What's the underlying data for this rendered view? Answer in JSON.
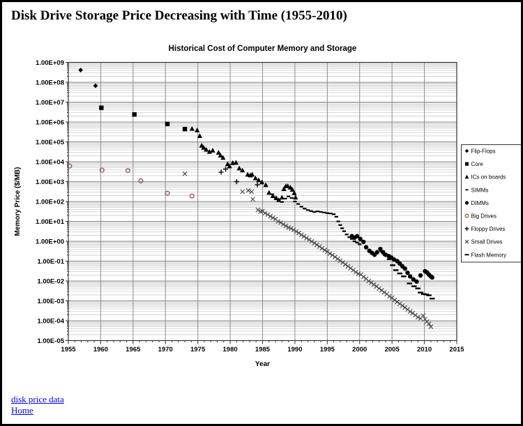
{
  "page": {
    "title": "Disk Drive Storage Price Decreasing with Time (1955-2010)"
  },
  "links": {
    "disk_price_data": "disk price data",
    "home": "Home"
  },
  "chart_data": {
    "type": "scatter",
    "title": "Historical Cost of Computer Memory and Storage",
    "xlabel": "Year",
    "ylabel": "Memory Price ($/MB)",
    "x_range": [
      1955,
      2015
    ],
    "x_ticks": [
      1955,
      1960,
      1965,
      1970,
      1975,
      1980,
      1985,
      1990,
      1995,
      2000,
      2005,
      2010,
      2015
    ],
    "y_scale": "log",
    "ylim": [
      1e-05,
      1000000000
    ],
    "y_ticks": [
      "1.00E+09",
      "1.00E+08",
      "1.00E+07",
      "1.00E+06",
      "1.00E+05",
      "1.00E+04",
      "1.00E+03",
      "1.00E+02",
      "1.00E+01",
      "1.00E+00",
      "1.00E-01",
      "1.00E-02",
      "1.00E-03",
      "1.00E-04",
      "1.00E-05"
    ],
    "grid": "major-and-log-minor",
    "legend_position": "right",
    "series": [
      {
        "name": "Flip-Flops",
        "marker": "diamond",
        "color": "#000000",
        "points": [
          [
            1956.9,
            410000000.0
          ],
          [
            1959.2,
            67000000.0
          ]
        ]
      },
      {
        "name": "Core",
        "marker": "square",
        "color": "#000000",
        "points": [
          [
            1960.1,
            5200000.0
          ],
          [
            1965.2,
            2400000.0
          ],
          [
            1970.3,
            800000.0
          ],
          [
            1973.0,
            440000.0
          ]
        ]
      },
      {
        "name": "ICs on boards",
        "marker": "triangle",
        "color": "#000000",
        "points": [
          [
            1974.1,
            460000
          ],
          [
            1974.9,
            390000
          ],
          [
            1975.3,
            200000
          ],
          [
            1975.6,
            66000
          ],
          [
            1975.9,
            52000
          ],
          [
            1976.3,
            41000
          ],
          [
            1976.8,
            32000
          ],
          [
            1977.3,
            37000
          ],
          [
            1978.2,
            29000
          ],
          [
            1978.5,
            21000
          ],
          [
            1978.9,
            16000
          ],
          [
            1979.6,
            7700
          ],
          [
            1979.9,
            6000
          ],
          [
            1980.4,
            8800
          ],
          [
            1980.9,
            9100
          ],
          [
            1981.4,
            4700
          ],
          [
            1981.9,
            3700
          ],
          [
            1982.7,
            2300
          ],
          [
            1983.1,
            2100
          ],
          [
            1983.4,
            2300
          ],
          [
            1983.9,
            1500
          ],
          [
            1984.4,
            1200
          ],
          [
            1984.9,
            940
          ],
          [
            1985.5,
            680
          ],
          [
            1986.0,
            280
          ],
          [
            1986.6,
            190
          ],
          [
            1987.1,
            150
          ],
          [
            1987.5,
            120
          ],
          [
            1988.0,
            160
          ],
          [
            1988.3,
            430
          ],
          [
            1988.6,
            600
          ],
          [
            1988.9,
            600
          ],
          [
            1989.3,
            510
          ],
          [
            1989.6,
            400
          ],
          [
            1989.9,
            270
          ],
          [
            1990.1,
            160
          ]
        ]
      },
      {
        "name": "SIMMs",
        "marker": "dash-small",
        "color": "#000000",
        "points": [
          [
            1986.5,
            230
          ],
          [
            1987.0,
            160
          ],
          [
            1987.5,
            120
          ],
          [
            1988.0,
            95
          ],
          [
            1988.5,
            140
          ],
          [
            1989.0,
            180
          ],
          [
            1989.5,
            150
          ],
          [
            1990.0,
            100
          ],
          [
            1990.5,
            75
          ],
          [
            1991.0,
            55
          ],
          [
            1991.5,
            44
          ],
          [
            1992.0,
            37
          ],
          [
            1992.5,
            33
          ],
          [
            1993.0,
            30
          ],
          [
            1993.5,
            32
          ],
          [
            1994.0,
            30
          ],
          [
            1994.5,
            28
          ],
          [
            1995.0,
            26
          ],
          [
            1995.5,
            25
          ],
          [
            1996.0,
            23
          ],
          [
            1996.4,
            17
          ],
          [
            1996.7,
            10
          ],
          [
            1997.0,
            6.5
          ],
          [
            1997.3,
            4.5
          ],
          [
            1997.6,
            3.2
          ],
          [
            1998.0,
            2.2
          ],
          [
            1998.4,
            1.6
          ],
          [
            1998.8,
            1.3
          ],
          [
            1999.2,
            1.0
          ],
          [
            1999.6,
            0.85
          ],
          [
            2000.0,
            0.7
          ]
        ]
      },
      {
        "name": "DIMMs",
        "marker": "circle-filled",
        "color": "#000000",
        "points": [
          [
            1998.8,
            1.8
          ],
          [
            1999.2,
            1.5
          ],
          [
            1999.6,
            1.8
          ],
          [
            2000.1,
            1.3
          ],
          [
            2000.6,
            0.93
          ],
          [
            2001.0,
            0.5
          ],
          [
            2001.5,
            0.33
          ],
          [
            2001.9,
            0.26
          ],
          [
            2002.3,
            0.21
          ],
          [
            2002.7,
            0.28
          ],
          [
            2003.2,
            0.41
          ],
          [
            2003.6,
            0.28
          ],
          [
            2004.0,
            0.21
          ],
          [
            2004.5,
            0.18
          ],
          [
            2004.9,
            0.15
          ],
          [
            2005.3,
            0.12
          ],
          [
            2005.8,
            0.1
          ],
          [
            2006.2,
            0.075
          ],
          [
            2006.6,
            0.055
          ],
          [
            2007.0,
            0.042
          ],
          [
            2007.4,
            0.026
          ],
          [
            2007.8,
            0.017
          ],
          [
            2008.3,
            0.012
          ],
          [
            2008.8,
            0.0094
          ],
          [
            2009.4,
            0.019
          ],
          [
            2010.1,
            0.031
          ],
          [
            2010.4,
            0.027
          ],
          [
            2010.7,
            0.021
          ],
          [
            2011.0,
            0.017
          ],
          [
            2011.2,
            0.015
          ]
        ]
      },
      {
        "name": "Big Drives",
        "marker": "circle-open",
        "color": "#96524a",
        "points": [
          [
            1955.2,
            6100
          ],
          [
            1960.2,
            3800
          ],
          [
            1964.2,
            3600
          ],
          [
            1966.2,
            1100
          ],
          [
            1970.3,
            260
          ],
          [
            1974.1,
            190
          ]
        ]
      },
      {
        "name": "Floppy Drives",
        "marker": "plus",
        "color": "#000000",
        "points": [
          [
            1978.6,
            3000
          ],
          [
            1979.3,
            4300
          ],
          [
            1981.0,
            1000
          ],
          [
            1984.2,
            700
          ]
        ]
      },
      {
        "name": "Small Drives",
        "marker": "x",
        "color": "#4d4d4d",
        "points": [
          [
            1973.0,
            2500
          ],
          [
            1981.9,
            310
          ],
          [
            1982.8,
            360
          ],
          [
            1983.3,
            310
          ],
          [
            1983.5,
            130
          ],
          [
            1984.3,
            38
          ],
          [
            1984.7,
            31
          ],
          [
            1985.0,
            33
          ],
          [
            1985.4,
            26
          ],
          [
            1985.8,
            22
          ],
          [
            1986.2,
            18
          ],
          [
            1986.6,
            15
          ],
          [
            1987.0,
            13
          ],
          [
            1987.4,
            10
          ],
          [
            1987.8,
            8.6
          ],
          [
            1988.2,
            7.1
          ],
          [
            1988.6,
            5.9
          ],
          [
            1989.0,
            4.9
          ],
          [
            1989.4,
            4.4
          ],
          [
            1989.8,
            3.7
          ],
          [
            1990.2,
            3.1
          ],
          [
            1990.6,
            2.6
          ],
          [
            1991.0,
            2.1
          ],
          [
            1991.4,
            1.75
          ],
          [
            1991.8,
            1.45
          ],
          [
            1992.2,
            1.2
          ],
          [
            1992.6,
            0.98
          ],
          [
            1993.0,
            0.8
          ],
          [
            1993.4,
            0.66
          ],
          [
            1993.8,
            0.54
          ],
          [
            1994.2,
            0.44
          ],
          [
            1994.6,
            0.36
          ],
          [
            1995.0,
            0.3
          ],
          [
            1995.4,
            0.24
          ],
          [
            1995.8,
            0.2
          ],
          [
            1996.2,
            0.16
          ],
          [
            1996.6,
            0.13
          ],
          [
            1997.0,
            0.105
          ],
          [
            1997.4,
            0.085
          ],
          [
            1997.8,
            0.068
          ],
          [
            1998.2,
            0.055
          ],
          [
            1998.6,
            0.044
          ],
          [
            1999.0,
            0.035
          ],
          [
            1999.4,
            0.028
          ],
          [
            1999.8,
            0.023
          ],
          [
            2000.2,
            0.021
          ],
          [
            2000.6,
            0.016
          ],
          [
            2001.0,
            0.013
          ],
          [
            2001.4,
            0.01
          ],
          [
            2001.8,
            0.0082
          ],
          [
            2002.2,
            0.0066
          ],
          [
            2002.6,
            0.0053
          ],
          [
            2003.0,
            0.0042
          ],
          [
            2003.4,
            0.0034
          ],
          [
            2003.8,
            0.0027
          ],
          [
            2004.2,
            0.0022
          ],
          [
            2004.6,
            0.0017
          ],
          [
            2005.0,
            0.0014
          ],
          [
            2005.4,
            0.0011
          ],
          [
            2005.8,
            0.00089
          ],
          [
            2006.2,
            0.00071
          ],
          [
            2006.6,
            0.00057
          ],
          [
            2007.0,
            0.00046
          ],
          [
            2007.4,
            0.00037
          ],
          [
            2007.8,
            0.00029
          ],
          [
            2008.2,
            0.00024
          ],
          [
            2008.6,
            0.00019
          ],
          [
            2009.0,
            0.00015
          ],
          [
            2009.4,
            0.00013
          ],
          [
            2009.8,
            0.00018
          ],
          [
            2010.1,
            0.00012
          ],
          [
            2010.4,
            9e-05
          ],
          [
            2010.7,
            7e-05
          ],
          [
            2011.0,
            5e-05
          ]
        ]
      },
      {
        "name": "Flash Memory",
        "marker": "dash-large",
        "color": "#000000",
        "points": [
          [
            2003.5,
            0.31
          ],
          [
            2004.0,
            0.2
          ],
          [
            2004.6,
            0.125
          ],
          [
            2005.1,
            0.062
          ],
          [
            2005.6,
            0.035
          ],
          [
            2006.2,
            0.024
          ],
          [
            2006.8,
            0.017
          ],
          [
            2007.7,
            0.0075
          ],
          [
            2008.4,
            0.0054
          ],
          [
            2009.0,
            0.0042
          ],
          [
            2009.4,
            0.0026
          ],
          [
            2009.9,
            0.0022
          ],
          [
            2010.3,
            0.0021
          ],
          [
            2010.7,
            0.0019
          ],
          [
            2011.2,
            0.0013
          ]
        ]
      }
    ]
  }
}
